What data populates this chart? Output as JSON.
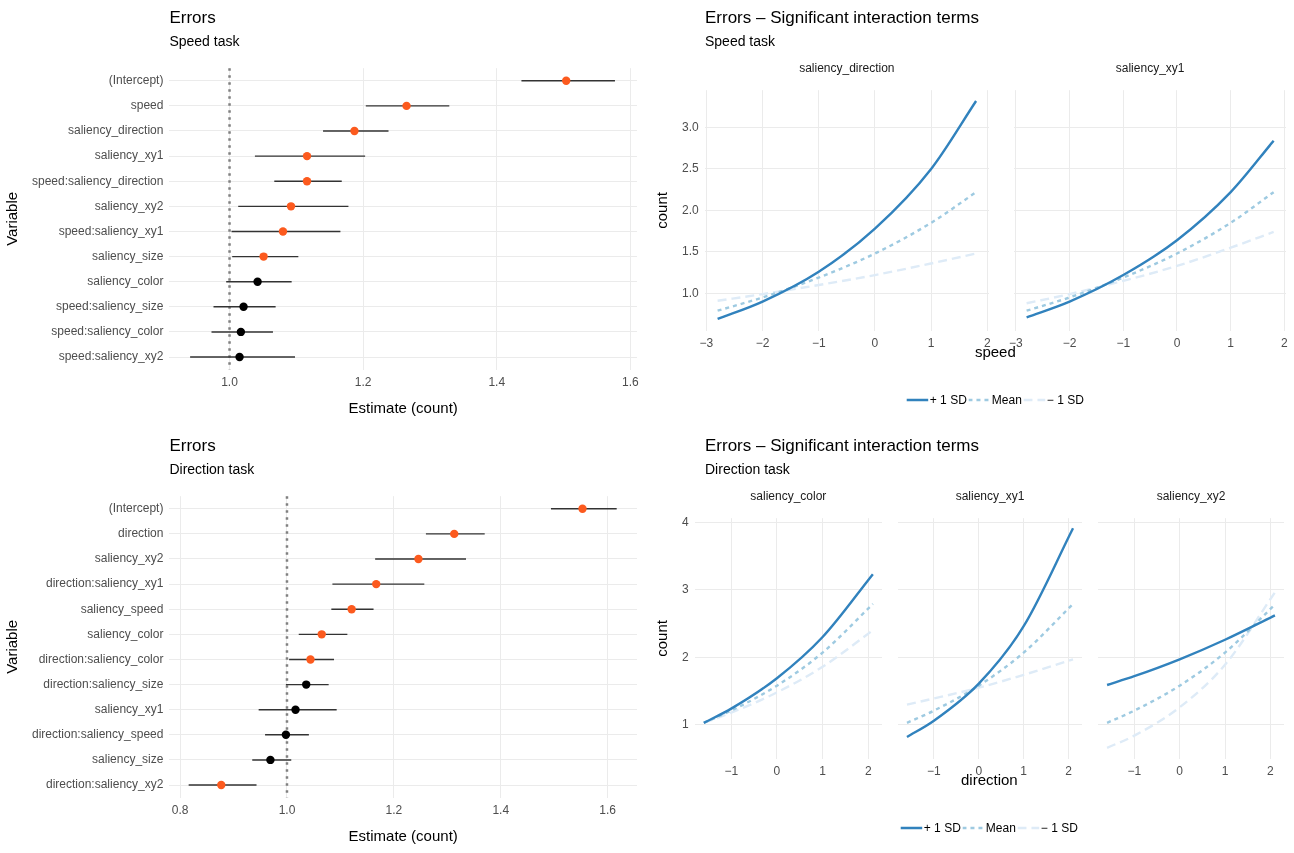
{
  "chart_data": [
    {
      "type": "scatter",
      "orientation": "horizontal",
      "title": "Errors",
      "subtitle": "Speed task",
      "xlabel": "Estimate (count)",
      "ylabel": "Variable",
      "marker": "circle",
      "grid": true,
      "legend": false,
      "categories": [
        "(Intercept)",
        "speed",
        "saliency_direction",
        "saliency_xy1",
        "speed:saliency_direction",
        "saliency_xy2",
        "speed:saliency_xy1",
        "saliency_size",
        "saliency_color",
        "speed:saliency_size",
        "speed:saliency_color",
        "speed:saliency_xy2"
      ],
      "values": [
        1.504,
        1.265,
        1.187,
        1.116,
        1.116,
        1.092,
        1.08,
        1.051,
        1.042,
        1.021,
        1.017,
        1.015
      ],
      "errors": [
        [
          1.437,
          1.577
        ],
        [
          1.204,
          1.329
        ],
        [
          1.14,
          1.238
        ],
        [
          1.038,
          1.203
        ],
        [
          1.067,
          1.168
        ],
        [
          1.013,
          1.178
        ],
        [
          1.003,
          1.166
        ],
        [
          1.004,
          1.103
        ],
        [
          0.995,
          1.093
        ],
        [
          0.976,
          1.069
        ],
        [
          0.973,
          1.065
        ],
        [
          0.941,
          1.098
        ]
      ],
      "colors": [
        "#fc5a1e",
        "#fc5a1e",
        "#fc5a1e",
        "#fc5a1e",
        "#fc5a1e",
        "#fc5a1e",
        "#fc5a1e",
        "#fc5a1e",
        "#000000",
        "#000000",
        "#000000",
        "#000000"
      ],
      "xlim": [
        0.91,
        1.61
      ],
      "xticks": [
        {
          "value": 1,
          "label": "1.0"
        },
        {
          "value": 1.2,
          "label": "1.2"
        },
        {
          "value": 1.4,
          "label": "1.4"
        },
        {
          "value": 1.6,
          "label": "1.6"
        }
      ],
      "ref_lines": [
        {
          "axis": "x",
          "value": 1,
          "color": "#808080",
          "line_style": "dotted"
        }
      ]
    },
    {
      "type": "other",
      "title": "Errors – Significant interaction terms",
      "subtitle": "Speed task"
    },
    {
      "type": "line",
      "title": "saliency_direction",
      "xlabel": "speed",
      "ylabel": "count",
      "legend": "bottom",
      "grid": true,
      "marker": "none",
      "x": [
        -2.8,
        -2,
        -1,
        0,
        1,
        1.8
      ],
      "series": [
        {
          "name": "+ 1 SD",
          "color": "#3182bd",
          "line_style": "solid",
          "values": [
            0.69,
            0.9,
            1.26,
            1.78,
            2.5,
            3.32
          ]
        },
        {
          "name": "Mean",
          "color": "#9ecae1",
          "line_style": "dotted",
          "values": [
            0.79,
            0.95,
            1.19,
            1.48,
            1.85,
            2.22
          ]
        },
        {
          "name": "− 1 SD",
          "color": "#deebf7",
          "line_style": "dashed",
          "values": [
            0.91,
            0.99,
            1.1,
            1.22,
            1.36,
            1.48
          ]
        }
      ],
      "xlim": [
        -3.03,
        2.03
      ],
      "xticks": [
        {
          "value": -3,
          "label": "−3"
        },
        {
          "value": -2,
          "label": "−2"
        },
        {
          "value": -1,
          "label": "−1"
        },
        0,
        1,
        2
      ],
      "ylim": [
        0.55,
        3.45
      ],
      "yticks": [
        {
          "value": 1,
          "label": "1.0"
        },
        1.5,
        {
          "value": 2,
          "label": "2.0"
        },
        2.5,
        {
          "value": 3,
          "label": "3.0"
        }
      ]
    },
    {
      "type": "line",
      "title": "saliency_xy1",
      "grid": true,
      "marker": "none",
      "tick_labels": "x",
      "x": [
        -2.8,
        -2,
        -1,
        0,
        1,
        1.8
      ],
      "series": [
        {
          "color": "#3182bd",
          "line_style": "solid",
          "values": [
            0.71,
            0.9,
            1.22,
            1.64,
            2.22,
            2.84
          ]
        },
        {
          "color": "#9ecae1",
          "line_style": "dotted",
          "values": [
            0.79,
            0.95,
            1.19,
            1.48,
            1.85,
            2.22
          ]
        },
        {
          "color": "#deebf7",
          "line_style": "dashed",
          "values": [
            0.88,
            0.99,
            1.15,
            1.33,
            1.55,
            1.74
          ]
        }
      ],
      "xlim": [
        -3.03,
        2.03
      ],
      "xticks": [
        {
          "value": -3,
          "label": "−3"
        },
        {
          "value": -2,
          "label": "−2"
        },
        {
          "value": -1,
          "label": "−1"
        },
        0,
        1,
        2
      ],
      "ylim": [
        0.55,
        3.45
      ],
      "yticks": [
        1,
        1.5,
        2,
        2.5,
        3
      ]
    },
    {
      "type": "scatter",
      "orientation": "horizontal",
      "title": "Errors",
      "subtitle": "Direction task",
      "xlabel": "Estimate (count)",
      "ylabel": "Variable",
      "marker": "circle",
      "grid": true,
      "legend": false,
      "categories": [
        "(Intercept)",
        "direction",
        "saliency_xy2",
        "direction:saliency_xy1",
        "saliency_speed",
        "saliency_color",
        "direction:saliency_color",
        "direction:saliency_size",
        "saliency_xy1",
        "direction:saliency_speed",
        "saliency_size",
        "direction:saliency_xy2"
      ],
      "values": [
        1.553,
        1.313,
        1.246,
        1.167,
        1.121,
        1.065,
        1.044,
        1.036,
        1.016,
        0.998,
        0.969,
        0.877
      ],
      "errors": [
        [
          1.494,
          1.617
        ],
        [
          1.26,
          1.37
        ],
        [
          1.165,
          1.335
        ],
        [
          1.085,
          1.257
        ],
        [
          1.083,
          1.162
        ],
        [
          1.022,
          1.113
        ],
        [
          1.004,
          1.088
        ],
        [
          0.998,
          1.078
        ],
        [
          0.947,
          1.093
        ],
        [
          0.959,
          1.041
        ],
        [
          0.935,
          1.008
        ],
        [
          0.816,
          0.943
        ]
      ],
      "colors": [
        "#fc5a1e",
        "#fc5a1e",
        "#fc5a1e",
        "#fc5a1e",
        "#fc5a1e",
        "#fc5a1e",
        "#fc5a1e",
        "#000000",
        "#000000",
        "#000000",
        "#000000",
        "#fc5a1e"
      ],
      "xlim": [
        0.78,
        1.655
      ],
      "xticks": [
        {
          "value": 0.8,
          "label": "0.8"
        },
        {
          "value": 1,
          "label": "1.0"
        },
        {
          "value": 1.2,
          "label": "1.2"
        },
        {
          "value": 1.4,
          "label": "1.4"
        },
        {
          "value": 1.6,
          "label": "1.6"
        }
      ],
      "ref_lines": [
        {
          "axis": "x",
          "value": 1,
          "color": "#808080",
          "line_style": "dotted"
        }
      ]
    },
    {
      "type": "other",
      "title": "Errors – Significant interaction terms",
      "subtitle": "Direction task"
    },
    {
      "type": "line",
      "title": "saliency_color",
      "xlabel": "direction",
      "ylabel": "count",
      "legend": "bottom",
      "grid": true,
      "marker": "none",
      "x": [
        -1.6,
        -1,
        0,
        1,
        2.1
      ],
      "series": [
        {
          "name": "+ 1 SD",
          "color": "#3182bd",
          "line_style": "solid",
          "values": [
            1.03,
            1.24,
            1.69,
            2.3,
            3.23
          ]
        },
        {
          "name": "Mean",
          "color": "#9ecae1",
          "line_style": "dotted",
          "values": [
            1.03,
            1.21,
            1.58,
            2.07,
            2.79
          ]
        },
        {
          "name": "− 1 SD",
          "color": "#deebf7",
          "line_style": "dashed",
          "values": [
            1.03,
            1.18,
            1.48,
            1.86,
            2.4
          ]
        }
      ],
      "xlim": [
        -1.8,
        2.3
      ],
      "xticks": [
        {
          "value": -1,
          "label": "−1"
        },
        0,
        1,
        2
      ],
      "ylim": [
        0.5,
        4.06
      ],
      "yticks": [
        1,
        2,
        3,
        4
      ]
    },
    {
      "type": "line",
      "title": "saliency_xy1",
      "grid": true,
      "marker": "none",
      "tick_labels": "x",
      "x": [
        -1.6,
        -1,
        0,
        1,
        2.1
      ],
      "series": [
        {
          "color": "#3182bd",
          "line_style": "solid",
          "values": [
            0.82,
            1.06,
            1.61,
            2.46,
            3.91
          ]
        },
        {
          "color": "#9ecae1",
          "line_style": "dotted",
          "values": [
            1.03,
            1.21,
            1.58,
            2.07,
            2.79
          ]
        },
        {
          "color": "#deebf7",
          "line_style": "dashed",
          "values": [
            1.3,
            1.39,
            1.55,
            1.74,
            1.97
          ]
        }
      ],
      "xlim": [
        -1.8,
        2.3
      ],
      "xticks": [
        {
          "value": -1,
          "label": "−1"
        },
        0,
        1,
        2
      ],
      "ylim": [
        0.5,
        4.06
      ],
      "yticks": [
        1,
        2,
        3,
        4
      ]
    },
    {
      "type": "line",
      "title": "saliency_xy2",
      "grid": true,
      "marker": "none",
      "tick_labels": "x",
      "x": [
        -1.6,
        -1,
        0,
        1,
        2.1
      ],
      "series": [
        {
          "color": "#3182bd",
          "line_style": "solid",
          "values": [
            1.59,
            1.72,
            1.97,
            2.26,
            2.62
          ]
        },
        {
          "color": "#9ecae1",
          "line_style": "dotted",
          "values": [
            1.03,
            1.21,
            1.58,
            2.07,
            2.78
          ]
        },
        {
          "color": "#deebf7",
          "line_style": "dashed",
          "values": [
            0.66,
            0.84,
            1.26,
            1.89,
            2.96
          ]
        }
      ],
      "xlim": [
        -1.8,
        2.3
      ],
      "xticks": [
        {
          "value": -1,
          "label": "−1"
        },
        0,
        1,
        2
      ],
      "ylim": [
        0.5,
        4.06
      ],
      "yticks": [
        1,
        2,
        3,
        4
      ]
    }
  ]
}
